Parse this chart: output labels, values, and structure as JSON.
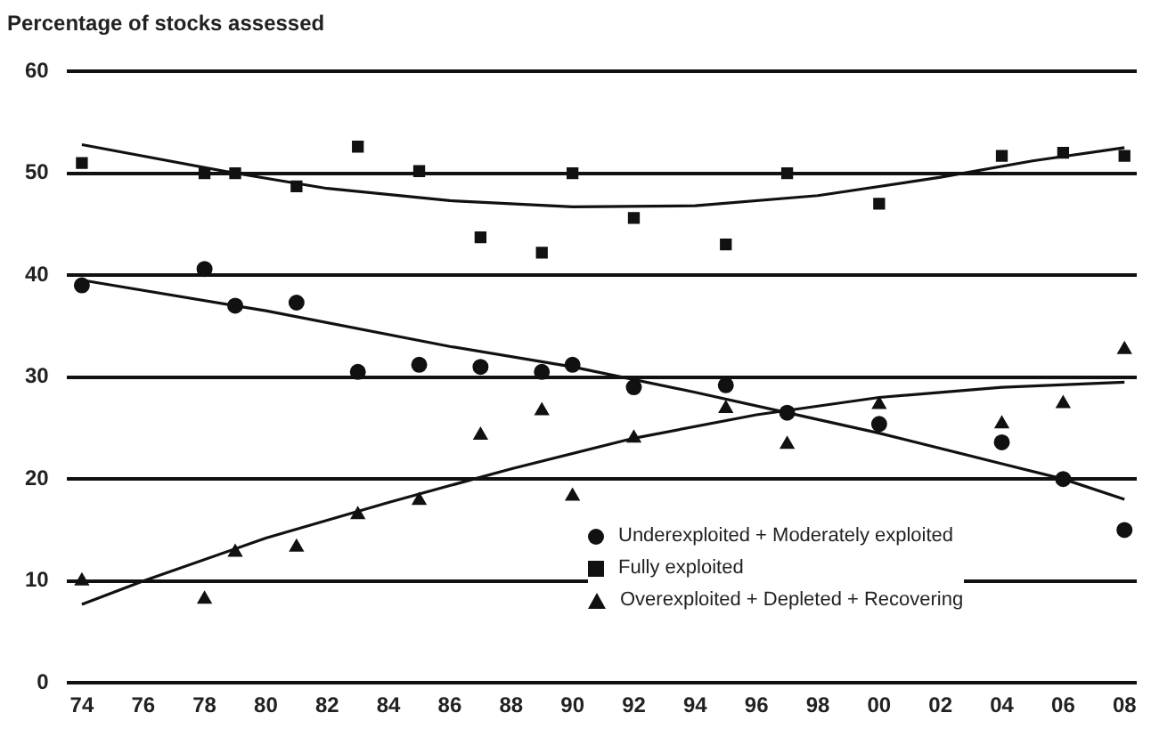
{
  "chart_data": {
    "type": "scatter",
    "ylabel": "Percentage of stocks assessed",
    "xlim": [
      1973.5,
      2008.4
    ],
    "xticks": [
      {
        "value": 1974,
        "label": "74"
      },
      {
        "value": 1976,
        "label": "76"
      },
      {
        "value": 1978,
        "label": "78"
      },
      {
        "value": 1980,
        "label": "80"
      },
      {
        "value": 1982,
        "label": "82"
      },
      {
        "value": 1984,
        "label": "84"
      },
      {
        "value": 1986,
        "label": "86"
      },
      {
        "value": 1988,
        "label": "88"
      },
      {
        "value": 1990,
        "label": "90"
      },
      {
        "value": 1992,
        "label": "92"
      },
      {
        "value": 1994,
        "label": "94"
      },
      {
        "value": 1996,
        "label": "96"
      },
      {
        "value": 1998,
        "label": "98"
      },
      {
        "value": 2000,
        "label": "00"
      },
      {
        "value": 2002,
        "label": "02"
      },
      {
        "value": 2004,
        "label": "04"
      },
      {
        "value": 2006,
        "label": "06"
      },
      {
        "value": 2008,
        "label": "08"
      }
    ],
    "ylim": [
      0,
      60
    ],
    "yticks": [
      0,
      10,
      20,
      30,
      40,
      50,
      60
    ],
    "grid": "y",
    "legend": "bottom right",
    "series": [
      {
        "name": "Underexploited + Moderately exploited",
        "color": "#111111",
        "marker": "circle",
        "x": [
          1974,
          1978,
          1979,
          1981,
          1983,
          1985,
          1987,
          1989,
          1990,
          1992,
          1995,
          1997,
          2000,
          2004,
          2006,
          2008
        ],
        "values": [
          39,
          40.6,
          37,
          37.3,
          30.5,
          31.2,
          31,
          30.5,
          31.2,
          29,
          29.2,
          26.5,
          25.4,
          23.6,
          20,
          15
        ]
      },
      {
        "name": "Fully exploited",
        "color": "#111111",
        "marker": "square",
        "x": [
          1974,
          1978,
          1979,
          1981,
          1983,
          1985,
          1987,
          1989,
          1990,
          1992,
          1995,
          1997,
          2000,
          2004,
          2006,
          2008
        ],
        "values": [
          51,
          50,
          50,
          48.7,
          52.6,
          50.2,
          43.7,
          42.2,
          50,
          45.6,
          43,
          50,
          47,
          51.7,
          52,
          51.7
        ]
      },
      {
        "name": "Overexploited + Depleted + Recovering",
        "color": "#111111",
        "marker": "triangle",
        "x": [
          1974,
          1978,
          1979,
          1981,
          1983,
          1985,
          1987,
          1989,
          1990,
          1992,
          1995,
          1997,
          2000,
          2004,
          2006,
          2008
        ],
        "values": [
          10,
          8.2,
          12.8,
          13.3,
          16.5,
          17.9,
          24.3,
          26.7,
          18.3,
          24,
          26.9,
          23.4,
          27.3,
          25.4,
          27.4,
          32.7
        ]
      },
      {
        "type": "line",
        "color": "#111111",
        "marker": "none",
        "x": [
          1974,
          1979,
          1982,
          1986,
          1990,
          1994,
          1998,
          2002,
          2005,
          2008
        ],
        "values": [
          52.8,
          50,
          48.5,
          47.3,
          46.7,
          46.8,
          47.8,
          49.6,
          51.2,
          52.5
        ]
      },
      {
        "type": "line",
        "color": "#111111",
        "marker": "none",
        "x": [
          1974,
          1980,
          1986,
          1990,
          1994,
          1997,
          2000,
          2004,
          2006,
          2008
        ],
        "values": [
          39.5,
          36.5,
          33,
          31,
          28.5,
          26.5,
          24.5,
          21.5,
          20,
          18
        ]
      },
      {
        "type": "line",
        "color": "#111111",
        "marker": "none",
        "x": [
          1974,
          1976,
          1980,
          1984,
          1988,
          1992,
          1996,
          2000,
          2004,
          2008
        ],
        "values": [
          7.7,
          10,
          14.2,
          17.7,
          21,
          24,
          26.3,
          28,
          29,
          29.5
        ]
      }
    ]
  }
}
